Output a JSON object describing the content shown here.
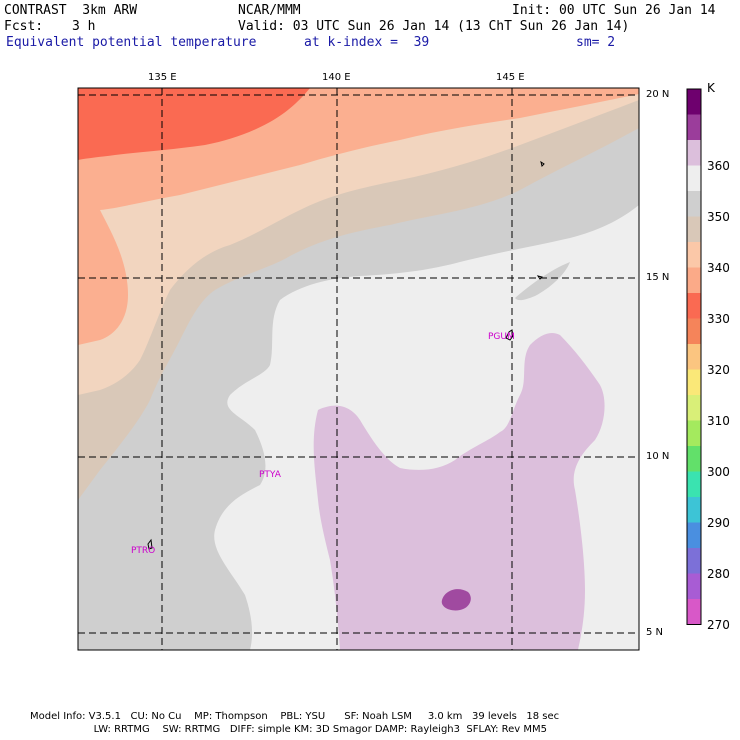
{
  "header": {
    "model": "CONTRAST  3km ARW",
    "center": "NCAR/MMM",
    "init": "Init: 00 UTC Sun 26 Jan 14",
    "fcst_label": "Fcst:",
    "fcst_value": "3 h",
    "valid": "Valid: 03 UTC Sun 26 Jan 14 (13 ChT Sun 26 Jan 14)",
    "field": "Equivalent potential temperature",
    "level": "at k-index =  39",
    "smoothing": "sm= 2"
  },
  "map": {
    "lon_labels": [
      "135 E",
      "140 E",
      "145 E"
    ],
    "lat_labels": [
      "20 N",
      "15 N",
      "10 N",
      "5 N"
    ],
    "stations": [
      "PGUM",
      "PTYA",
      "PTRO"
    ]
  },
  "colorbar": {
    "unit": "K",
    "levels": [
      "360",
      "350",
      "340",
      "330",
      "320",
      "310",
      "300",
      "290",
      "280",
      "270"
    ],
    "colors": [
      "#6e006e",
      "#9b3d9b",
      "#dcbfdc",
      "#eeeeee",
      "#cfcfcf",
      "#d9c8b8",
      "#fbc8a8",
      "#fbaa88",
      "#fa6a52",
      "#f5845a",
      "#fbc580",
      "#fae878",
      "#d9ef78",
      "#a4ea5e",
      "#62e06a",
      "#3ae3b0",
      "#3dc4d6",
      "#4a8fe0",
      "#7c70d8",
      "#a85cd4",
      "#d858c8"
    ]
  },
  "footer": {
    "line1": "Model Info: V3.5.1   CU: No Cu    MP: Thompson    PBL: YSU      SF: Noah LSM     3.0 km   39 levels   18 sec",
    "line2": "                    LW: RRTMG    SW: RRTMG   DIFF: simple KM: 3D Smagor DAMP: Rayleigh3  SFLAY: Rev MM5"
  }
}
